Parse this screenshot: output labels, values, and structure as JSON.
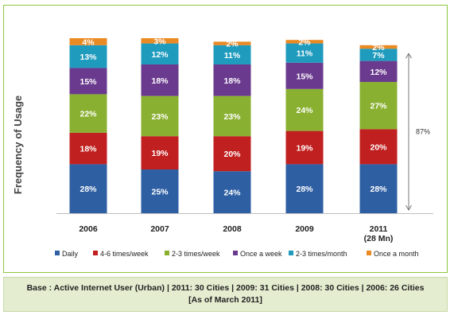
{
  "chart_data": {
    "type": "bar",
    "stacked": true,
    "ylabel": "Frequency of Usage",
    "categories": [
      "2006",
      "2007",
      "2008",
      "2009",
      "2011"
    ],
    "category_sublabels": [
      "",
      "",
      "",
      "",
      "(28 Mn)"
    ],
    "series": [
      {
        "name": "Daily",
        "color": "#2e5fa3",
        "values": [
          28,
          25,
          24,
          28,
          28
        ]
      },
      {
        "name": "4-6 times/week",
        "color": "#c0201f",
        "values": [
          18,
          19,
          20,
          19,
          20
        ]
      },
      {
        "name": "2-3 times/week",
        "color": "#8ab031",
        "values": [
          22,
          23,
          23,
          24,
          27
        ]
      },
      {
        "name": "Once a week",
        "color": "#6a3a8e",
        "values": [
          15,
          18,
          18,
          15,
          12
        ]
      },
      {
        "name": "2-3 times/month",
        "color": "#1f9bbd",
        "values": [
          13,
          12,
          11,
          11,
          7
        ]
      },
      {
        "name": "Once a month",
        "color": "#ea8a23",
        "values": [
          4,
          3,
          2,
          2,
          2
        ]
      }
    ],
    "value_suffix": "%",
    "annotation": {
      "label": "87%",
      "category": "2011"
    },
    "legend_position": "bottom",
    "grid": false
  },
  "footer": {
    "line1": "Base : Active Internet User (Urban) | 2011: 30 Cities | 2009: 31 Cities | 2008: 30 Cities | 2006: 26 Cities",
    "line2": "[As of March 2011]"
  }
}
